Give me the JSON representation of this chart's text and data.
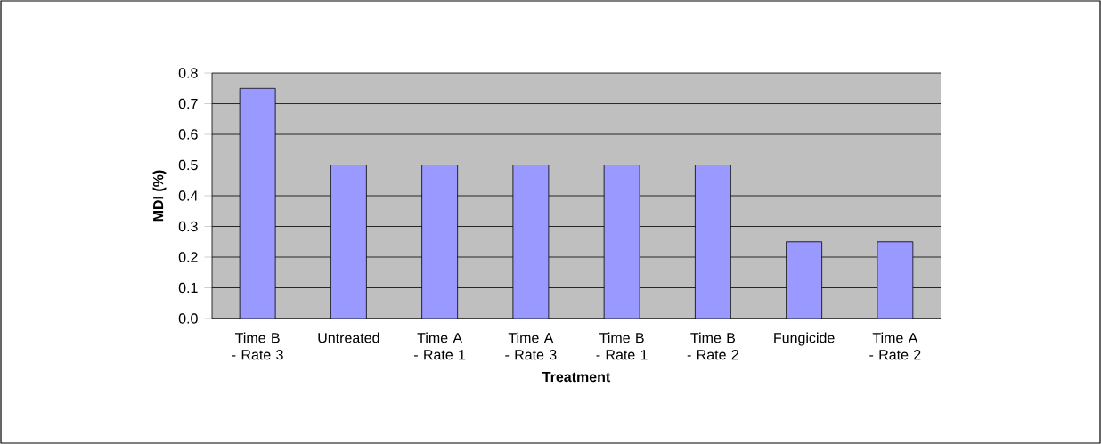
{
  "chart_data": {
    "type": "bar",
    "categories": [
      "Time B - Rate 3",
      "Untreated",
      "Time A - Rate 1",
      "Time A - Rate 3",
      "Time B - Rate 1",
      "Time B - Rate 2",
      "Fungicide",
      "Time A - Rate 2"
    ],
    "values": [
      0.75,
      0.5,
      0.5,
      0.5,
      0.5,
      0.5,
      0.25,
      0.25
    ],
    "color": "#9999ff",
    "xlabel": "Treatment",
    "ylabel": "MDI (%)",
    "ylim": [
      0,
      0.8
    ],
    "yticks": [
      {
        "value": 0,
        "label": "0.0"
      },
      0.1,
      0.2,
      0.3,
      0.4,
      0.5,
      0.6,
      0.7,
      0.8
    ],
    "grid": "y"
  }
}
